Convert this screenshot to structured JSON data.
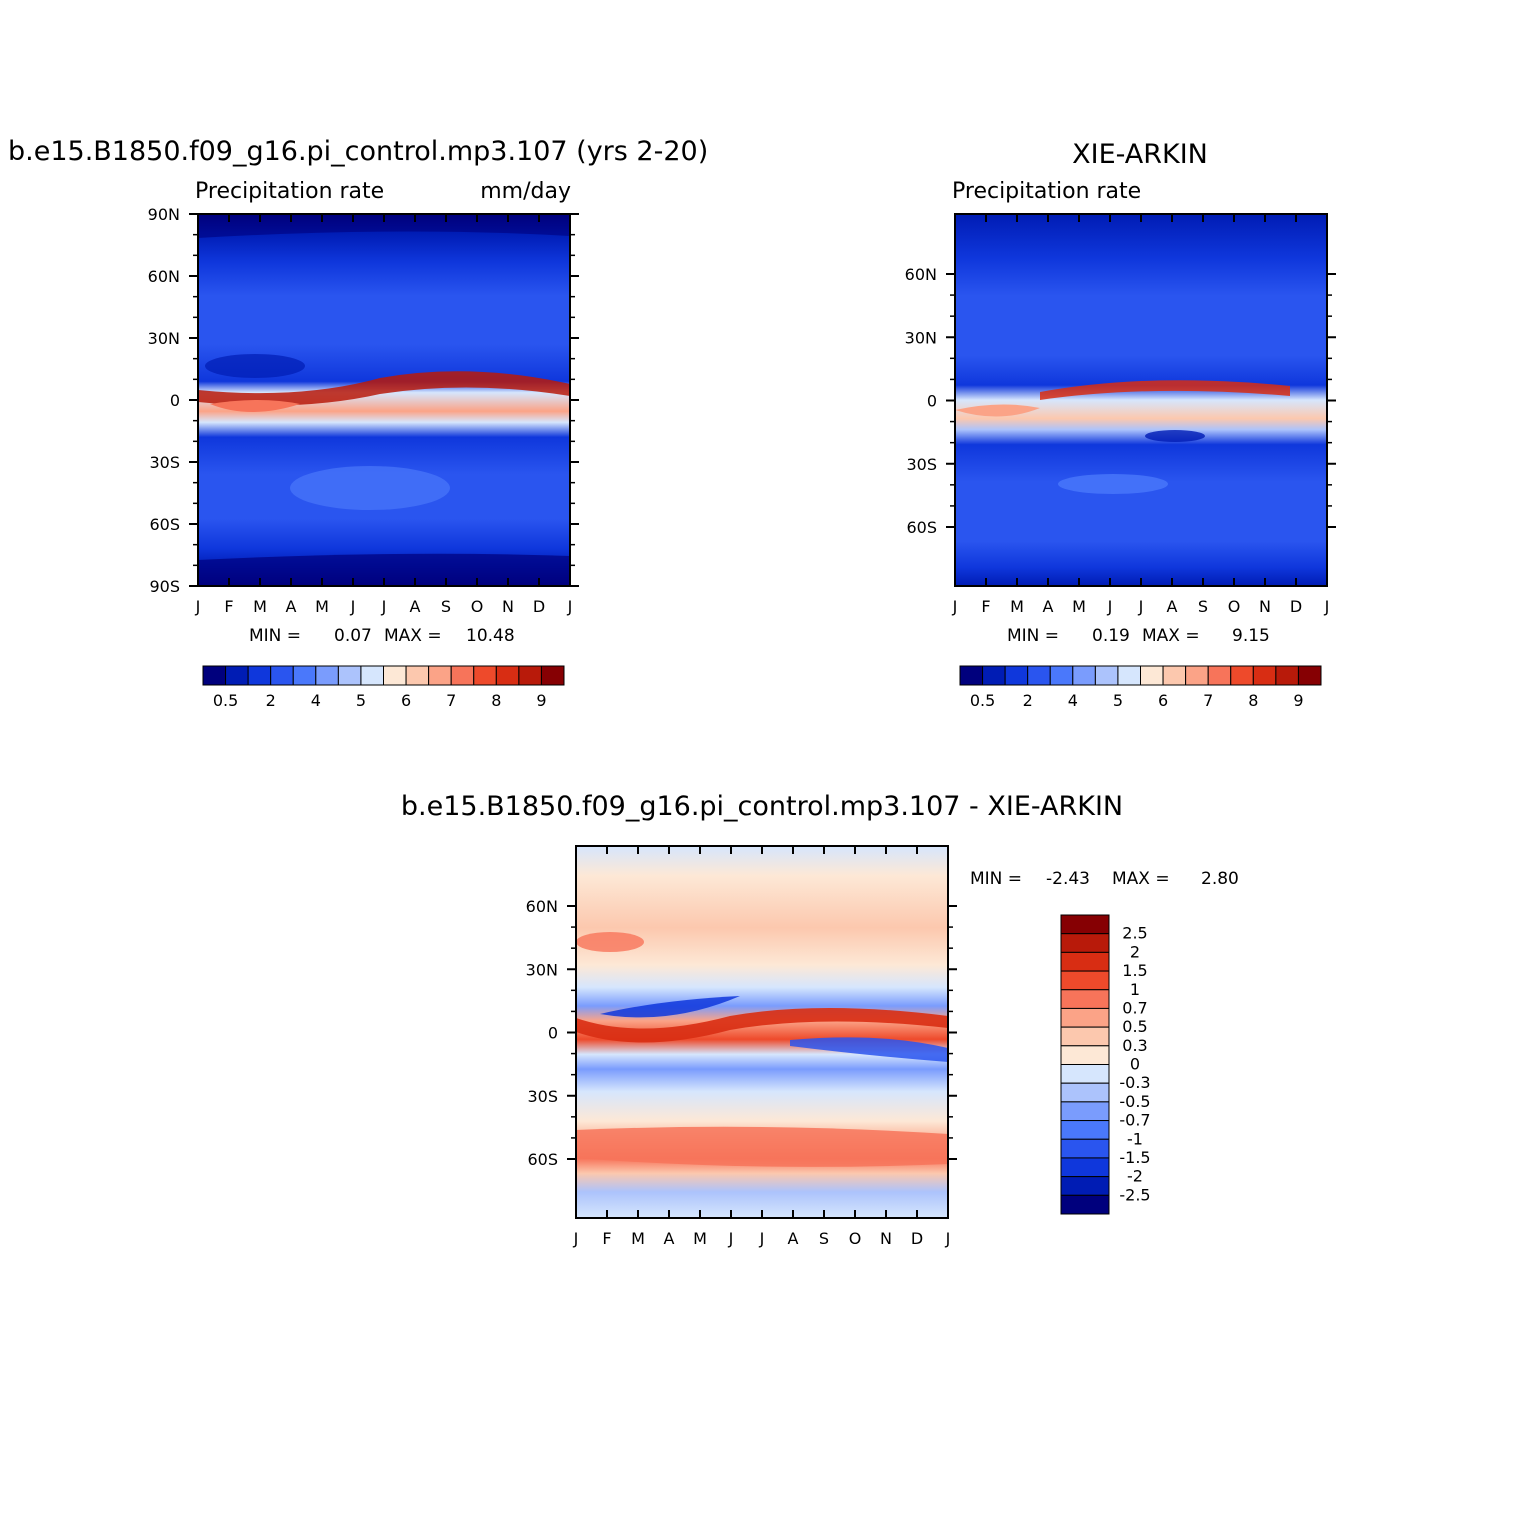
{
  "chart_data": [
    {
      "type": "heatmap",
      "title": "b.e15.B1850.f09_g16.pi_control.mp3.107 (yrs 2-20)",
      "subtitle_left": "Precipitation rate",
      "subtitle_right": "mm/day",
      "x_ticks": [
        "J",
        "F",
        "M",
        "A",
        "M",
        "J",
        "J",
        "A",
        "S",
        "O",
        "N",
        "D",
        "J"
      ],
      "y_ticks": [
        "90N",
        "60N",
        "30N",
        "0",
        "30S",
        "60S",
        "90S"
      ],
      "min_label": "MIN =",
      "min_value": "0.07",
      "max_label": "MAX =",
      "max_value": "10.48",
      "colorbar_labels": [
        "0.5",
        "2",
        "4",
        "5",
        "6",
        "7",
        "8",
        "9"
      ],
      "colorbar_colors": [
        "#00007d",
        "#001cb4",
        "#0f37dc",
        "#2a55ef",
        "#4a78fb",
        "#7a9cfd",
        "#acc3fc",
        "#d6e6fd",
        "#fde8d6",
        "#fcc8ae",
        "#fba387",
        "#f7745a",
        "#ee4a2b",
        "#d82d13",
        "#b81a0a",
        "#860003"
      ]
    },
    {
      "type": "heatmap",
      "title": "XIE-ARKIN",
      "subtitle_left": "Precipitation rate",
      "x_ticks": [
        "J",
        "F",
        "M",
        "A",
        "M",
        "J",
        "J",
        "A",
        "S",
        "O",
        "N",
        "D",
        "J"
      ],
      "y_ticks": [
        "60N",
        "30N",
        "0",
        "30S",
        "60S"
      ],
      "min_label": "MIN =",
      "min_value": "0.19",
      "max_label": "MAX =",
      "max_value": "9.15",
      "colorbar_labels": [
        "0.5",
        "2",
        "4",
        "5",
        "6",
        "7",
        "8",
        "9"
      ],
      "colorbar_colors": [
        "#00007d",
        "#001cb4",
        "#0f37dc",
        "#2a55ef",
        "#4a78fb",
        "#7a9cfd",
        "#acc3fc",
        "#d6e6fd",
        "#fde8d6",
        "#fcc8ae",
        "#fba387",
        "#f7745a",
        "#ee4a2b",
        "#d82d13",
        "#b81a0a",
        "#860003"
      ]
    },
    {
      "type": "heatmap",
      "title": "b.e15.B1850.f09_g16.pi_control.mp3.107 - XIE-ARKIN",
      "x_ticks": [
        "J",
        "F",
        "M",
        "A",
        "M",
        "J",
        "J",
        "A",
        "S",
        "O",
        "N",
        "D",
        "J"
      ],
      "y_ticks": [
        "60N",
        "30N",
        "0",
        "30S",
        "60S"
      ],
      "min_label": "MIN =",
      "min_value": "-2.43",
      "max_label": "MAX =",
      "max_value": "2.80",
      "colorbar_labels": [
        "2.5",
        "2",
        "1.5",
        "1",
        "0.7",
        "0.5",
        "0.3",
        "0",
        "-0.3",
        "-0.5",
        "-0.7",
        "-1",
        "-1.5",
        "-2",
        "-2.5"
      ],
      "colorbar_colors": [
        "#860003",
        "#b81a0a",
        "#d82d13",
        "#ee4a2b",
        "#f7745a",
        "#fba387",
        "#fcc8ae",
        "#fde8d6",
        "#d6e6fd",
        "#acc3fc",
        "#7a9cfd",
        "#4a78fb",
        "#2a55ef",
        "#0f37dc",
        "#001cb4",
        "#00007d"
      ]
    }
  ]
}
